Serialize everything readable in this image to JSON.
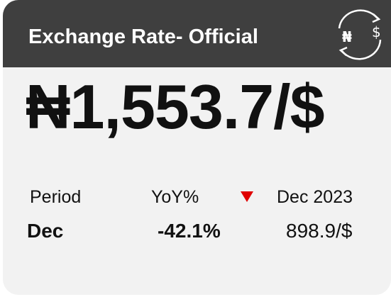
{
  "header": {
    "title": "Exchange Rate- Official",
    "icon_left": "₦",
    "icon_right": "$"
  },
  "main_value": "₦1,553.7/$",
  "labels": [
    "Period",
    "YoY%",
    "Dec 2023"
  ],
  "values": [
    "Dec",
    "-42.1%",
    "898.9/$"
  ]
}
